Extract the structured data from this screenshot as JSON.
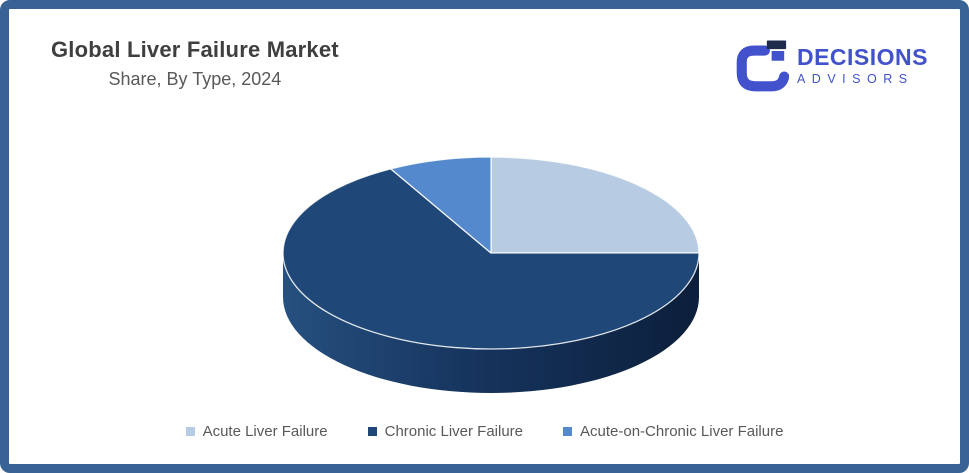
{
  "header": {
    "title": "Global Liver Failure Market",
    "subtitle": "Share, By Type, 2024"
  },
  "logo": {
    "name": "DECISIONS",
    "subname": "ADVISORS",
    "icon": "stylized-g-mark",
    "accent_color": "#4152CC",
    "cap_color": "#1F2B4D"
  },
  "chart_data": {
    "type": "pie",
    "style": "3d",
    "title": "Global Liver Failure Market Share, By Type, 2024",
    "unit": "percent",
    "start_angle": "12-oclock",
    "direction": "clockwise",
    "legend_position": "bottom",
    "series": [
      {
        "label": "Acute Liver Failure",
        "value": 25,
        "color": "#B7CBE2"
      },
      {
        "label": "Chronic Liver Failure",
        "value": 67,
        "color": "#1F4878"
      },
      {
        "label": "Acute-on-Chronic Liver Failure",
        "value": 8,
        "color": "#5489CE"
      }
    ]
  },
  "colors": {
    "frame_border": "#3A6395",
    "title_text": "#3F3F3F",
    "subtitle_text": "#595959",
    "legend_text": "#595959",
    "side_gradient_left": "#26507F",
    "side_gradient_mid": "#16345E",
    "side_gradient_right": "#0C1F3B",
    "slice_separator": "#FFFFFF"
  }
}
